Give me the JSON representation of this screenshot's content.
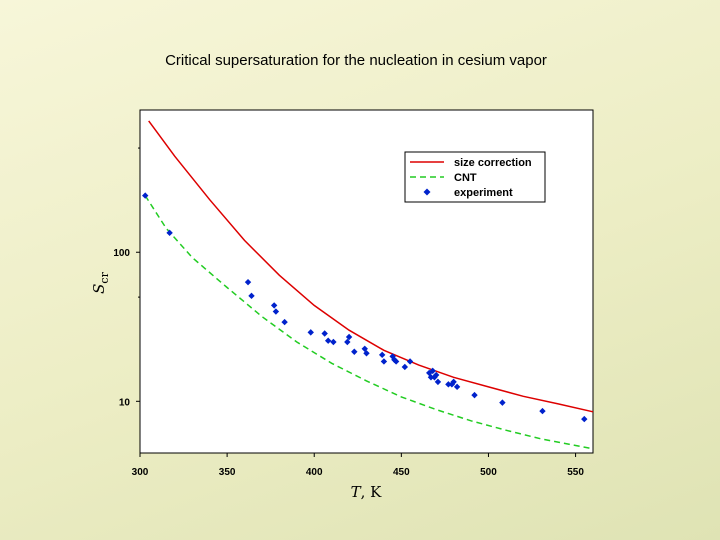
{
  "slide": {
    "title": "Critical supersaturation for the nucleation in cesium vapor"
  },
  "chart_data": {
    "type": "line",
    "title": "Critical supersaturation for the nucleation in cesium vapor",
    "xlabel": "T, K",
    "ylabel": "S_cr",
    "ylabel_main": "S",
    "ylabel_sub": "cr",
    "xlabel_italic": "T",
    "xlabel_unit": ", K",
    "xlim": [
      300,
      560
    ],
    "ylim": [
      4.5,
      900
    ],
    "yscale": "log",
    "x_ticks": [
      300,
      350,
      400,
      450,
      500,
      550
    ],
    "x_tick_labels": [
      "300",
      "350",
      "400",
      "450",
      "500",
      "550"
    ],
    "y_ticks": [
      10,
      100
    ],
    "y_tick_labels": [
      "10",
      "100"
    ],
    "series": [
      {
        "name": "size correction",
        "style": "solid",
        "color": "#dd0000",
        "x": [
          305,
          320,
          340,
          360,
          380,
          400,
          420,
          440,
          460,
          480,
          500,
          520,
          540,
          560
        ],
        "y": [
          760,
          440,
          225,
          120,
          70,
          44,
          30,
          22,
          17.5,
          14.5,
          12.5,
          10.8,
          9.6,
          8.5
        ]
      },
      {
        "name": "CNT",
        "style": "dashed",
        "color": "#22cc22",
        "x": [
          303,
          315,
          330,
          350,
          370,
          390,
          410,
          430,
          450,
          470,
          490,
          510,
          530,
          560
        ],
        "y": [
          240,
          145,
          92,
          58,
          37,
          25,
          18,
          13.7,
          10.7,
          8.8,
          7.4,
          6.4,
          5.6,
          4.8
        ]
      },
      {
        "name": "experiment",
        "style": "markers",
        "color": "#0022cc",
        "x": [
          303,
          317,
          362,
          364,
          377,
          378,
          383,
          398,
          406,
          408,
          411,
          419,
          420,
          423,
          429,
          430,
          439,
          440,
          445,
          446,
          447,
          452,
          455,
          466,
          467,
          468,
          469,
          470,
          471,
          477,
          479,
          480,
          482,
          492,
          508,
          531,
          555
        ],
        "y": [
          240,
          135,
          63,
          51,
          44,
          40,
          34,
          29,
          28.5,
          25.5,
          25,
          25,
          27,
          21.5,
          22.5,
          21,
          20.5,
          18.5,
          20,
          19,
          18.5,
          17,
          18.5,
          15.5,
          14.5,
          16,
          14.5,
          15,
          13.5,
          13,
          13,
          13.5,
          12.5,
          11,
          9.8,
          8.6,
          7.6
        ]
      }
    ],
    "legend": {
      "position": "top-right",
      "entries": [
        "size correction",
        "CNT",
        "experiment"
      ]
    }
  }
}
